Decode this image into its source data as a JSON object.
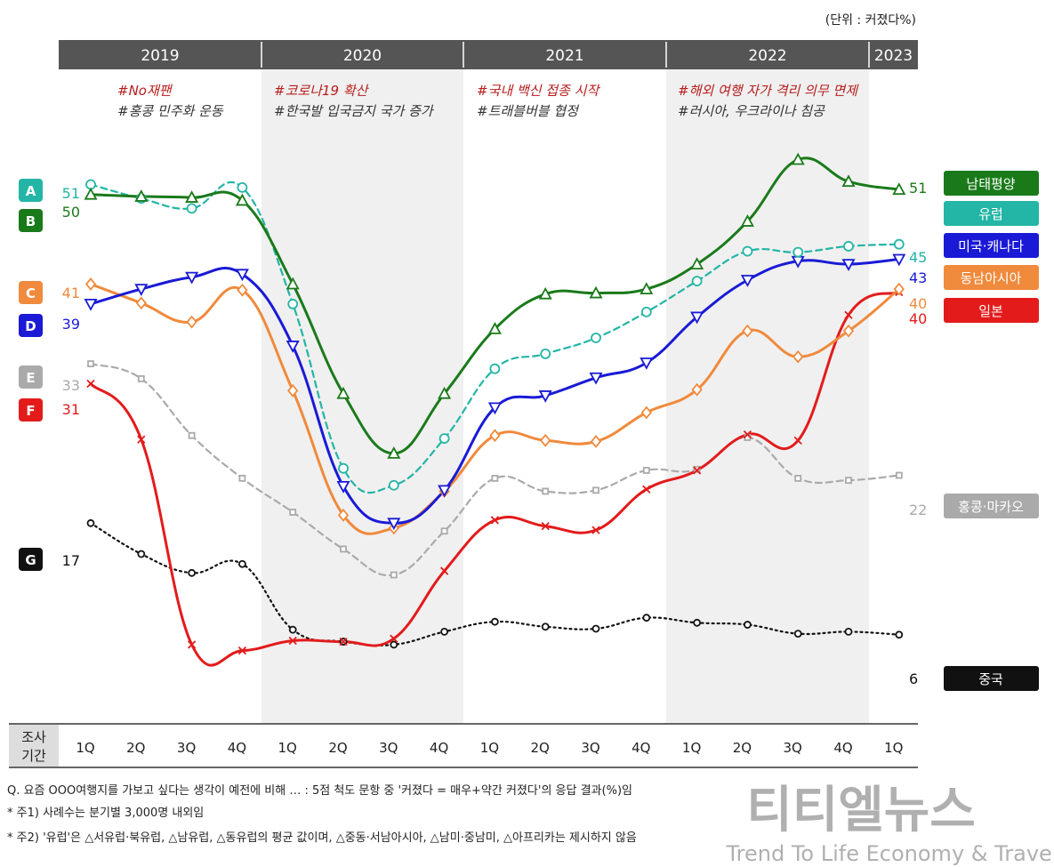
{
  "unit_label": "(단위 : 커졌다%)",
  "years": [
    "2019",
    "2020",
    "2021",
    "2022",
    "2023"
  ],
  "events": [
    {
      "red": "#No재팬",
      "gray": "#홍콩 민주화 운동"
    },
    {
      "red": "#코로나19 확산",
      "gray": "#한국발 입국금지 국가 증가"
    },
    {
      "red": "#국내 백신 접종 시작",
      "gray": "#트래블버블 협정"
    },
    {
      "red": "#해외 여행 자가 격리 의무 면제",
      "gray": "#러시아, 우크라이나 침공"
    }
  ],
  "x_axis_title": [
    "조사",
    "기간"
  ],
  "notes": [
    "Q. 요즘 OOO여행지를 가보고 싶다는 생각이 예전에 비해 … : 5점 척도 문항 중 '커졌다 = 매우+약간 커졌다'의 응답 결과(%)임",
    "* 주1) 사례수는 분기별 3,000명 내외임",
    "* 주2) '유럽'은 △서유럽·북유럽, △남유럽, △동유럽의 평균 값이며, △중동·서남아시아, △남미·중남미, △아프리카는 제시하지 않음"
  ],
  "watermark": {
    "title": "티티엘뉴스",
    "subtitle": "Trend To Life Economy & Travel"
  },
  "chart_data": {
    "type": "line",
    "categories": [
      "1Q",
      "2Q",
      "3Q",
      "4Q",
      "1Q",
      "2Q",
      "3Q",
      "4Q",
      "1Q",
      "2Q",
      "3Q",
      "4Q",
      "1Q",
      "2Q",
      "3Q",
      "4Q",
      "1Q"
    ],
    "category_years": [
      "2019",
      "2019",
      "2019",
      "2019",
      "2020",
      "2020",
      "2020",
      "2020",
      "2021",
      "2021",
      "2021",
      "2021",
      "2022",
      "2022",
      "2022",
      "2022",
      "2023"
    ],
    "ylim": [
      0,
      60
    ],
    "grid": false,
    "legend_placement": "right",
    "series": [
      {
        "name": "남태평양",
        "badge": "B",
        "color": "#1a7a1a",
        "style": "solid",
        "marker": "triangle-up",
        "start_label": "50",
        "end_label": "51",
        "values": [
          50,
          49.8,
          49.7,
          49.4,
          41,
          30,
          24,
          30,
          36.5,
          40,
          40.1,
          40.5,
          43,
          47.3,
          53.5,
          51.3,
          50.5
        ]
      },
      {
        "name": "유럽",
        "badge": "A",
        "color": "#23b5a5",
        "style": "dashed",
        "marker": "circle",
        "start_label": "51",
        "end_label": "45",
        "values": [
          51,
          49.6,
          48.6,
          50.7,
          39,
          22.5,
          20.8,
          25.5,
          32.5,
          34,
          35.6,
          38.2,
          41.3,
          44.3,
          44.2,
          44.8,
          45
        ]
      },
      {
        "name": "미국·캐나다",
        "badge": "D",
        "color": "#1a1ad6",
        "style": "solid",
        "marker": "triangle-down",
        "start_label": "39",
        "end_label": "43",
        "values": [
          39,
          40.5,
          41.7,
          42,
          34.8,
          20.7,
          17,
          20.3,
          28.6,
          29.8,
          31.6,
          33.1,
          37.7,
          41.4,
          43.3,
          43,
          43.5
        ]
      },
      {
        "name": "동남아시아",
        "badge": "C",
        "color": "#f08a3c",
        "style": "solid",
        "marker": "diamond",
        "start_label": "41",
        "end_label": "40",
        "values": [
          41,
          39.1,
          37.2,
          40.4,
          30.3,
          17.8,
          16.5,
          20.2,
          25.8,
          25.3,
          25.2,
          28.1,
          30.4,
          36.3,
          33.7,
          36.3,
          40.5
        ]
      },
      {
        "name": "일본",
        "badge": "F",
        "color": "#e31b1b",
        "style": "solid",
        "marker": "x",
        "start_label": "31",
        "end_label": "40",
        "values": [
          31,
          25.4,
          4.8,
          4.2,
          5.2,
          5.1,
          5.4,
          12.2,
          17.3,
          16.7,
          16.3,
          20.4,
          22.3,
          25.9,
          25.3,
          37.9,
          40.2
        ]
      },
      {
        "name": "홍콩·마카오",
        "badge": "E",
        "color": "#aaaaaa",
        "style": "dashed",
        "marker": "square",
        "start_label": "33",
        "end_label": "22",
        "values": [
          33,
          31.5,
          25.8,
          21.5,
          18.1,
          14.4,
          11.8,
          16.2,
          21.5,
          20.2,
          20.3,
          22.3,
          22.4,
          25.6,
          21.5,
          21.3,
          21.8
        ]
      },
      {
        "name": "중국",
        "badge": "G",
        "color": "#111111",
        "style": "dotted",
        "marker": "circle",
        "start_label": "17",
        "end_label": "6",
        "values": [
          17,
          13.9,
          12,
          12.9,
          6.3,
          5.1,
          4.8,
          6.1,
          7.1,
          6.6,
          6.4,
          7.5,
          7,
          6.8,
          5.9,
          6.1,
          5.8
        ]
      }
    ]
  }
}
